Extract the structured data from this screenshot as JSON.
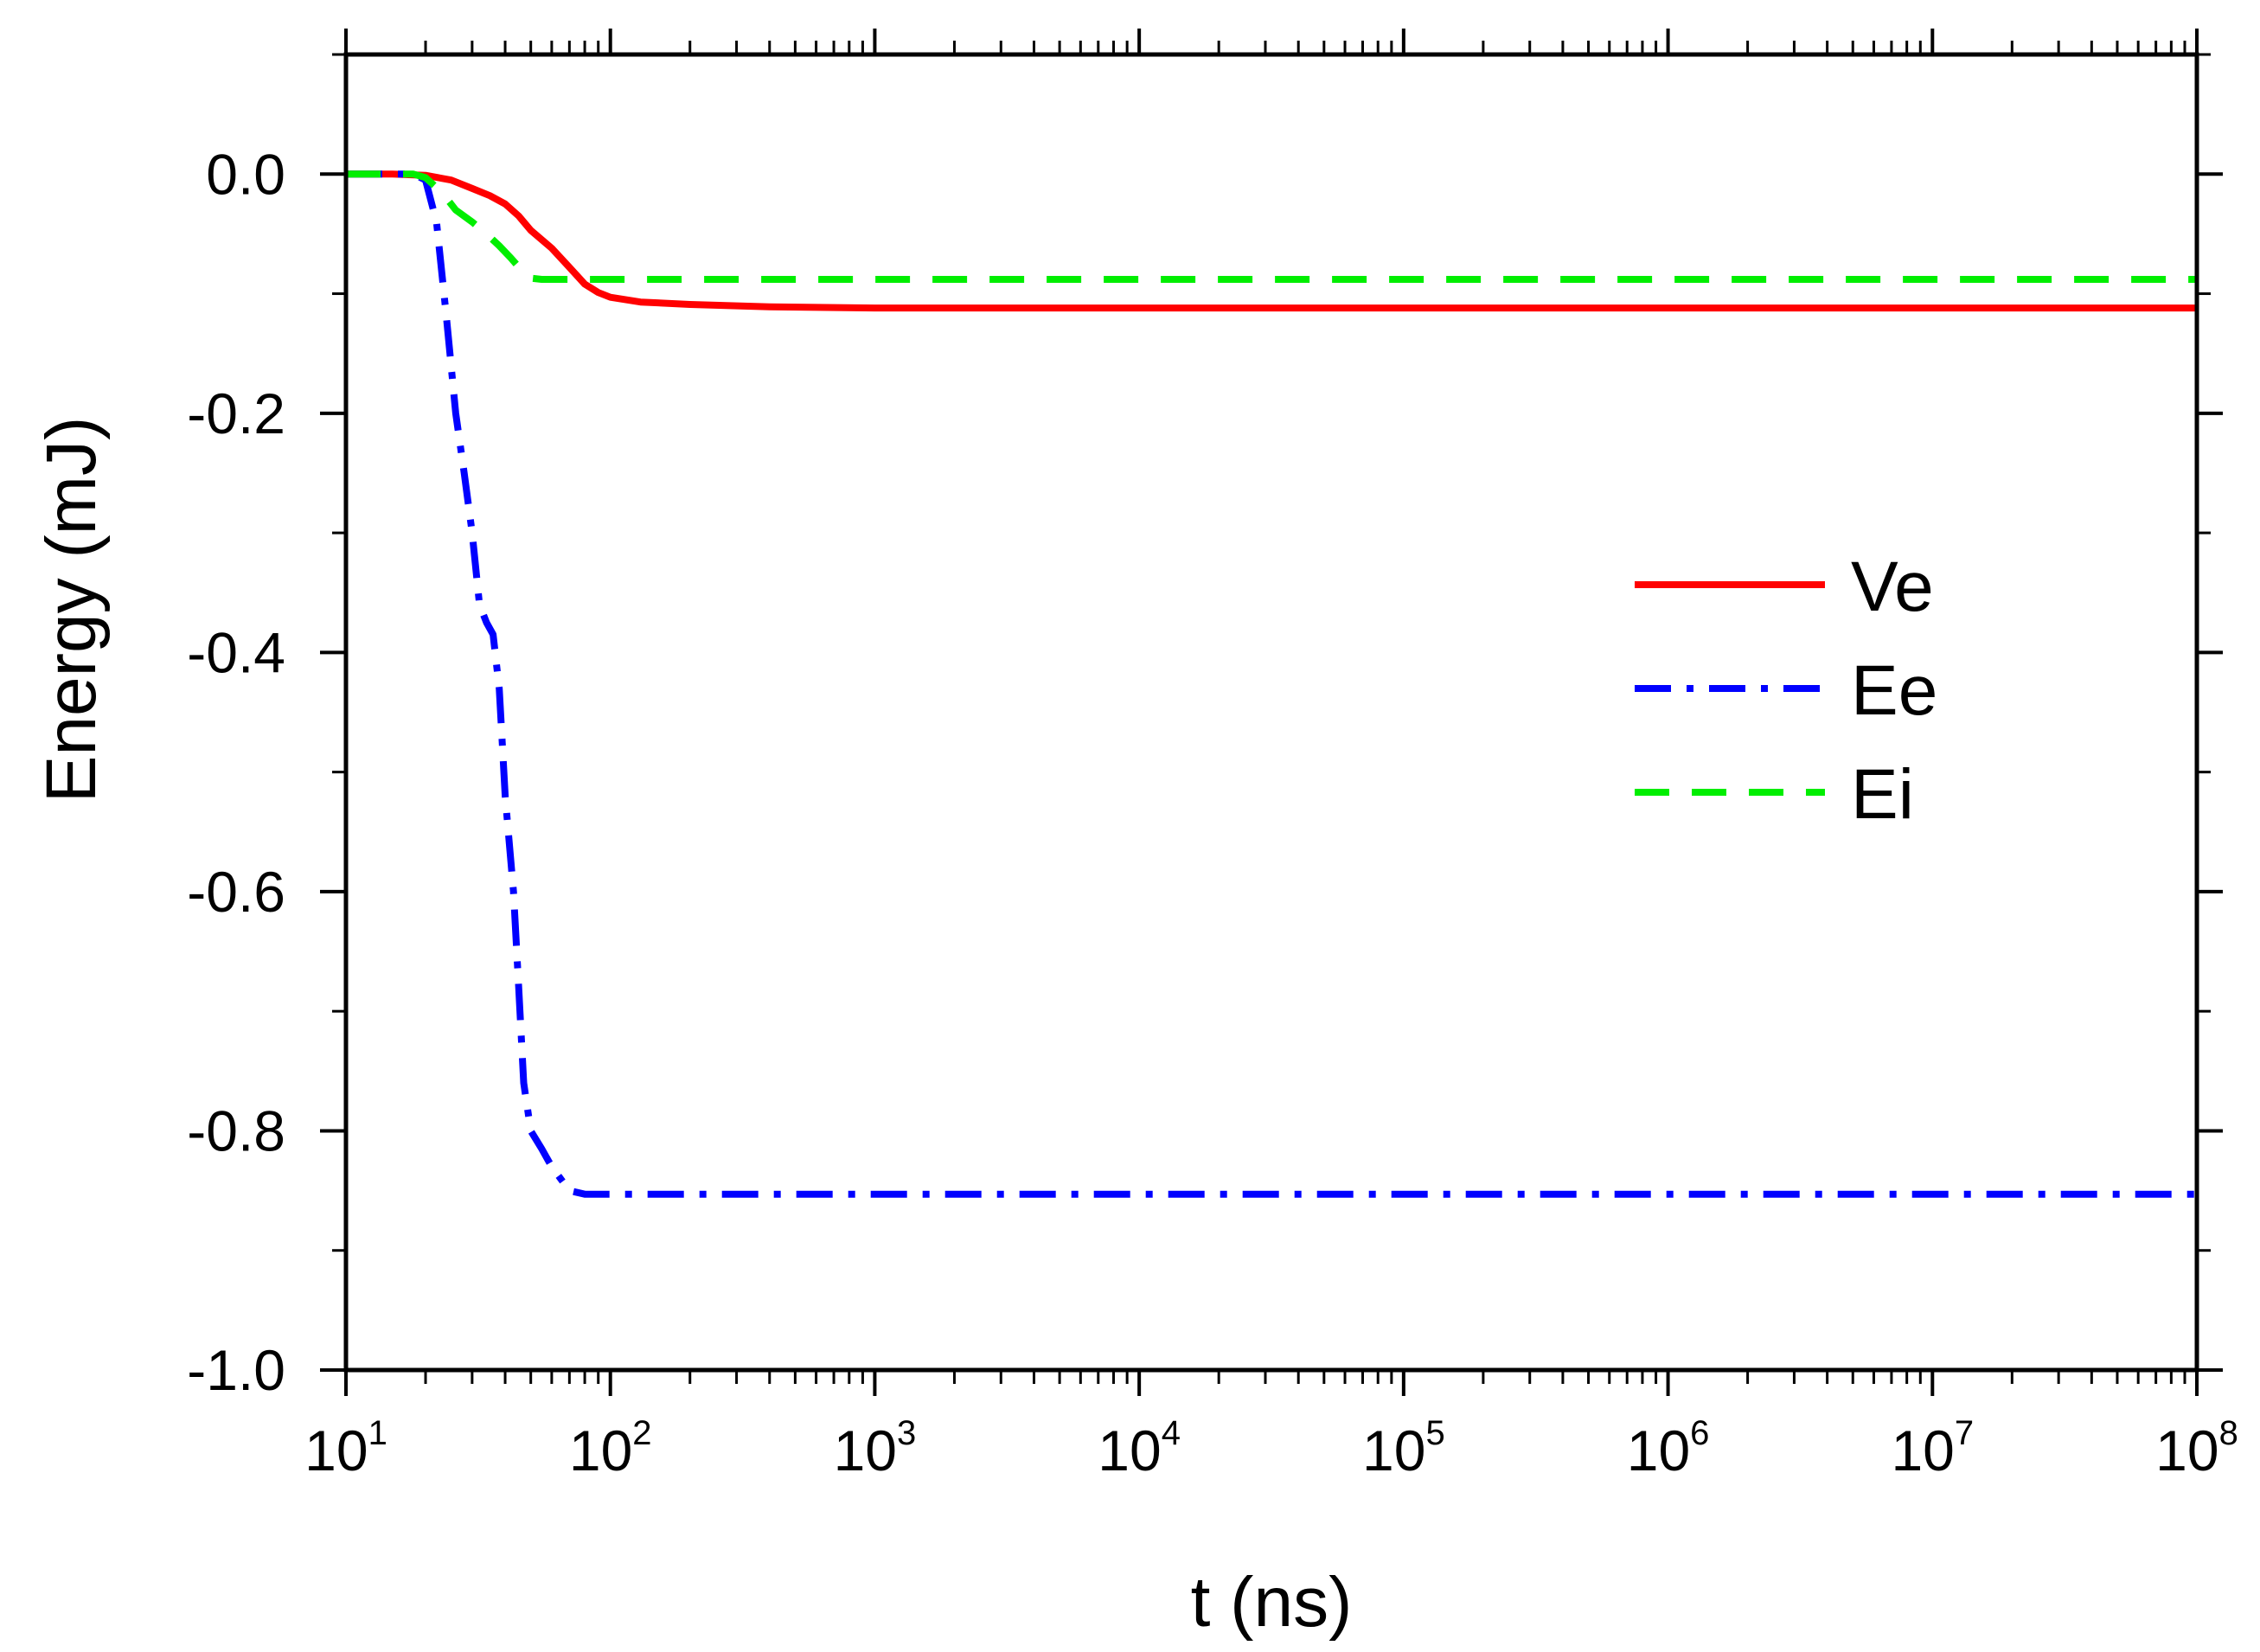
{
  "chart_data": {
    "type": "line",
    "title": "",
    "xlabel": "t (ns)",
    "ylabel": "Energy (mJ)",
    "xscale": "log",
    "xlim_exponent": [
      1,
      8
    ],
    "ylim": [
      -1.0,
      0.1
    ],
    "legend_position": "right-center",
    "x_ticks": [
      {
        "base": "10",
        "exp": "1"
      },
      {
        "base": "10",
        "exp": "2"
      },
      {
        "base": "10",
        "exp": "3"
      },
      {
        "base": "10",
        "exp": "4"
      },
      {
        "base": "10",
        "exp": "5"
      },
      {
        "base": "10",
        "exp": "6"
      },
      {
        "base": "10",
        "exp": "7"
      },
      {
        "base": "10",
        "exp": "8"
      }
    ],
    "y_ticks": [
      {
        "value": 0.0,
        "label": "0.0"
      },
      {
        "value": -0.2,
        "label": "-0.2"
      },
      {
        "value": -0.4,
        "label": "-0.4"
      },
      {
        "value": -0.6,
        "label": "-0.6"
      },
      {
        "value": -0.8,
        "label": "-0.8"
      },
      {
        "value": -1.0,
        "label": "-1.0"
      }
    ],
    "series": [
      {
        "name": "Ve",
        "color": "#ff0000",
        "dash": "solid",
        "x": [
          10,
          15,
          20,
          25,
          30,
          35,
          40,
          45,
          50,
          60,
          70,
          80,
          90,
          100,
          130,
          200,
          400,
          1000,
          10000,
          100000000
        ],
        "y": [
          0.0,
          0.0,
          -0.001,
          -0.005,
          -0.012,
          -0.018,
          -0.025,
          -0.035,
          -0.047,
          -0.062,
          -0.078,
          -0.092,
          -0.099,
          -0.103,
          -0.107,
          -0.109,
          -0.111,
          -0.112,
          -0.112,
          -0.112
        ]
      },
      {
        "name": "Ee",
        "color": "#0000ff",
        "dash": "dashdot",
        "x": [
          10,
          18,
          20,
          22,
          24,
          26,
          28,
          30,
          32,
          34,
          36,
          38,
          40,
          43,
          45,
          47,
          50,
          55,
          60,
          70,
          80,
          100,
          1000,
          100000000
        ],
        "y": [
          0.0,
          0.0,
          -0.005,
          -0.04,
          -0.12,
          -0.2,
          -0.25,
          -0.3,
          -0.36,
          -0.375,
          -0.385,
          -0.43,
          -0.52,
          -0.6,
          -0.68,
          -0.76,
          -0.8,
          -0.815,
          -0.83,
          -0.85,
          -0.853,
          -0.853,
          -0.853,
          -0.853
        ]
      },
      {
        "name": "Ei",
        "color": "#00ee00",
        "dash": "dash",
        "x": [
          10,
          18,
          20,
          23,
          26,
          30,
          34,
          38,
          42,
          46,
          50,
          55,
          60,
          70,
          100,
          100000000
        ],
        "y": [
          0.0,
          0.0,
          -0.003,
          -0.015,
          -0.03,
          -0.04,
          -0.05,
          -0.06,
          -0.07,
          -0.08,
          -0.087,
          -0.088,
          -0.088,
          -0.088,
          -0.088,
          -0.088
        ]
      }
    ]
  }
}
